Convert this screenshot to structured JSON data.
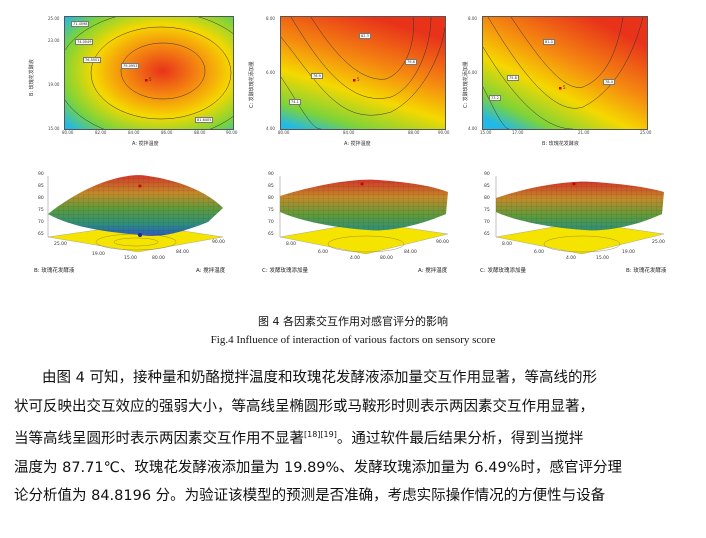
{
  "figure": {
    "contours": [
      {
        "xlabel": "A: 搅拌温度",
        "ylabel": "B: 玫瑰花发酵液",
        "xticks": [
          "80.00",
          "82.00",
          "84.00",
          "86.00",
          "88.00",
          "90.00"
        ],
        "yticks": [
          "15.00",
          "17.00",
          "19.00",
          "21.00",
          "23.00",
          "25.00"
        ],
        "levels": [
          "71.4598",
          "74.0049",
          "76.5501",
          "79.0953",
          "81.6405"
        ],
        "center": "5",
        "colors": {
          "hot": "#e8331a",
          "mid": "#f5d800",
          "cool": "#22b8e8"
        }
      },
      {
        "xlabel": "A: 搅拌温度",
        "ylabel": "C: 发酵玫瑰花添加量",
        "xticks": [
          "80.00",
          "82.00",
          "84.00",
          "86.00",
          "88.00",
          "90.00"
        ],
        "yticks": [
          "4.00",
          "5.00",
          "6.00",
          "7.00",
          "8.00"
        ],
        "levels": [
          "74.1",
          "76.9",
          "79.6",
          "82.3"
        ],
        "center": "5",
        "colors": {
          "hot": "#e8331a",
          "mid": "#f5d800",
          "cool": "#22b8e8"
        }
      },
      {
        "xlabel": "B: 玫瑰花发酵液",
        "ylabel": "C: 发酵玫瑰花添加量",
        "xticks": [
          "15.00",
          "17.00",
          "19.00",
          "21.00",
          "23.00",
          "25.00"
        ],
        "yticks": [
          "4.00",
          "5.00",
          "6.00",
          "7.00",
          "8.00"
        ],
        "levels": [
          "73.2",
          "75.8",
          "78.4",
          "81.0"
        ],
        "center": "5",
        "colors": {
          "hot": "#e8331a",
          "mid": "#f5d800",
          "cool": "#22b8e8"
        }
      }
    ],
    "surfaces": [
      {
        "zlabel": "感官评分",
        "zticks": [
          "90",
          "85",
          "80",
          "75",
          "70",
          "65"
        ],
        "xlabel": "A: 搅拌温度",
        "ylabel": "B: 玫瑰花发酵液",
        "xticks": [
          "80.00",
          "82.00",
          "84.00",
          "86.00",
          "88.00",
          "90.00"
        ],
        "yticks": [
          "15.00",
          "17.00",
          "19.00",
          "21.00",
          "23.00",
          "25.00"
        ]
      },
      {
        "zlabel": "感官评分",
        "zticks": [
          "90",
          "85",
          "80",
          "75",
          "70",
          "65"
        ],
        "xlabel": "A: 搅拌温度",
        "ylabel": "C: 发酵玫瑰添加量",
        "xticks": [
          "80.00",
          "84.00",
          "88.00",
          "90.00"
        ],
        "yticks": [
          "4.00",
          "5.00",
          "6.00",
          "7.00",
          "8.00"
        ]
      },
      {
        "zlabel": "感官评分",
        "zticks": [
          "90",
          "85",
          "80",
          "75",
          "70",
          "65"
        ],
        "xlabel": "B: 玫瑰花发酵液",
        "ylabel": "C: 发酵玫瑰添加量",
        "xticks": [
          "15.00",
          "17.00",
          "19.00",
          "21.00",
          "23.00",
          "25.00"
        ],
        "yticks": [
          "4.00",
          "5.00",
          "6.00",
          "7.00",
          "8.00"
        ]
      }
    ],
    "caption_zh": "图 4 各因素交互作用对感官评分的影响",
    "caption_en": "Fig.4 Influence of interaction of various factors on sensory score"
  },
  "body": {
    "line1": "由图 4 可知，接种量和奶酪搅拌温度和玫瑰花发酵液添加量交互作用显著，等高线的形",
    "line2": "状可反映出交互效应的强弱大小，等高线呈椭圆形或马鞍形时则表示两因素交互作用显著，",
    "line3a": "当等高线呈圆形时表示两因素交互作用不显著",
    "ref": "[18][19]",
    "line3b": "。通过软件最后结果分析，得到当搅拌",
    "line4": "温度为 87.71℃、玫瑰花发酵液添加量为 19.89%、发酵玫瑰添加量为 6.49%时，感官评分理",
    "line5": "论分析值为 84.8196 分。为验证该模型的预测是否准确，考虑实际操作情况的方便性与设备"
  }
}
